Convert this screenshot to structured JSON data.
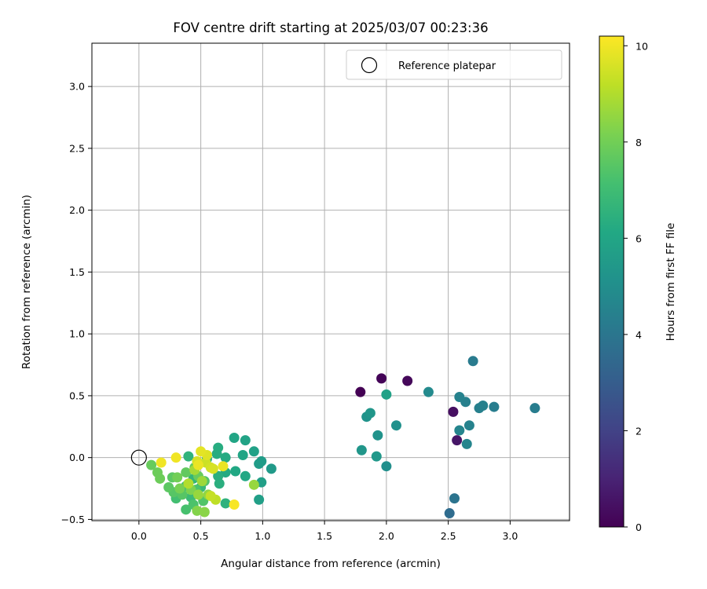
{
  "chart_data": {
    "type": "scatter",
    "title": "FOV centre drift starting at 2025/03/07 00:23:36",
    "xlabel": "Angular distance from reference (arcmin)",
    "ylabel": "Rotation from reference (arcmin)",
    "xlim": [
      -0.38,
      3.48
    ],
    "ylim": [
      -0.51,
      3.35
    ],
    "xticks": [
      0.0,
      0.5,
      1.0,
      1.5,
      2.0,
      2.5,
      3.0
    ],
    "xtick_labels": [
      "0.0",
      "0.5",
      "1.0",
      "1.5",
      "2.0",
      "2.5",
      "3.0"
    ],
    "yticks": [
      -0.5,
      0.0,
      0.5,
      1.0,
      1.5,
      2.0,
      2.5,
      3.0
    ],
    "ytick_labels": [
      "−0.5",
      "0.0",
      "0.5",
      "1.0",
      "1.5",
      "2.0",
      "2.5",
      "3.0"
    ],
    "grid": true,
    "legend": {
      "placement": "top-right",
      "entries": [
        {
          "label": "Reference platepar",
          "marker": "hollow-circle"
        }
      ]
    },
    "reference_point": {
      "x": 0.0,
      "y": 0.0
    },
    "colorbar": {
      "label": "Hours from first FF file",
      "colormap": "viridis",
      "range": [
        0,
        10.2
      ],
      "ticks": [
        0,
        2,
        4,
        6,
        8,
        10
      ],
      "tick_labels": [
        "0",
        "2",
        "4",
        "6",
        "8",
        "10"
      ]
    },
    "series": [
      {
        "points": [
          {
            "x": 1.79,
            "y": 0.53,
            "c": 0.0
          },
          {
            "x": 1.96,
            "y": 0.64,
            "c": 0.1
          },
          {
            "x": 2.17,
            "y": 0.62,
            "c": 0.2
          },
          {
            "x": 2.54,
            "y": 0.37,
            "c": 0.4
          },
          {
            "x": 2.57,
            "y": 0.14,
            "c": 0.6
          },
          {
            "x": 2.51,
            "y": -0.45,
            "c": 3.6
          },
          {
            "x": 2.55,
            "y": -0.33,
            "c": 3.9
          },
          {
            "x": 2.7,
            "y": 0.78,
            "c": 4.2
          },
          {
            "x": 3.2,
            "y": 0.4,
            "c": 4.3
          },
          {
            "x": 2.87,
            "y": 0.41,
            "c": 4.3
          },
          {
            "x": 2.78,
            "y": 0.42,
            "c": 4.4
          },
          {
            "x": 2.75,
            "y": 0.4,
            "c": 4.4
          },
          {
            "x": 2.64,
            "y": 0.45,
            "c": 4.4
          },
          {
            "x": 2.59,
            "y": 0.49,
            "c": 4.5
          },
          {
            "x": 2.67,
            "y": 0.26,
            "c": 4.5
          },
          {
            "x": 2.59,
            "y": 0.22,
            "c": 4.6
          },
          {
            "x": 2.65,
            "y": 0.11,
            "c": 4.6
          },
          {
            "x": 2.34,
            "y": 0.53,
            "c": 4.8
          },
          {
            "x": 2.0,
            "y": -0.07,
            "c": 5.0
          },
          {
            "x": 2.08,
            "y": 0.26,
            "c": 5.1
          },
          {
            "x": 1.93,
            "y": 0.18,
            "c": 5.2
          },
          {
            "x": 1.84,
            "y": 0.33,
            "c": 5.2
          },
          {
            "x": 1.87,
            "y": 0.36,
            "c": 5.3
          },
          {
            "x": 1.8,
            "y": 0.06,
            "c": 5.3
          },
          {
            "x": 1.92,
            "y": 0.01,
            "c": 5.4
          },
          {
            "x": 2.0,
            "y": 0.51,
            "c": 5.8
          },
          {
            "x": 1.07,
            "y": -0.09,
            "c": 5.5
          },
          {
            "x": 0.97,
            "y": -0.05,
            "c": 5.6
          },
          {
            "x": 0.99,
            "y": -0.03,
            "c": 5.6
          },
          {
            "x": 0.97,
            "y": -0.34,
            "c": 5.7
          },
          {
            "x": 0.99,
            "y": -0.2,
            "c": 5.7
          },
          {
            "x": 0.93,
            "y": 0.05,
            "c": 5.8
          },
          {
            "x": 0.86,
            "y": 0.14,
            "c": 5.9
          },
          {
            "x": 0.77,
            "y": 0.16,
            "c": 6.0
          },
          {
            "x": 0.84,
            "y": 0.02,
            "c": 6.0
          },
          {
            "x": 0.86,
            "y": -0.15,
            "c": 6.1
          },
          {
            "x": 0.78,
            "y": -0.11,
            "c": 6.1
          },
          {
            "x": 0.7,
            "y": 0.0,
            "c": 6.2
          },
          {
            "x": 0.7,
            "y": -0.12,
            "c": 6.2
          },
          {
            "x": 0.64,
            "y": 0.08,
            "c": 6.3
          },
          {
            "x": 0.63,
            "y": 0.03,
            "c": 6.3
          },
          {
            "x": 0.64,
            "y": -0.15,
            "c": 6.4
          },
          {
            "x": 0.65,
            "y": -0.21,
            "c": 6.4
          },
          {
            "x": 0.7,
            "y": -0.37,
            "c": 6.5
          },
          {
            "x": 0.55,
            "y": -0.01,
            "c": 6.5
          },
          {
            "x": 0.4,
            "y": 0.01,
            "c": 6.6
          },
          {
            "x": 0.44,
            "y": -0.17,
            "c": 6.7
          },
          {
            "x": 0.5,
            "y": -0.24,
            "c": 6.8
          },
          {
            "x": 0.42,
            "y": -0.32,
            "c": 6.9
          },
          {
            "x": 0.38,
            "y": -0.23,
            "c": 7.0
          },
          {
            "x": 0.3,
            "y": -0.33,
            "c": 7.1
          },
          {
            "x": 0.38,
            "y": -0.42,
            "c": 7.2
          },
          {
            "x": 0.44,
            "y": -0.38,
            "c": 7.3
          },
          {
            "x": 0.46,
            "y": -0.26,
            "c": 7.3
          },
          {
            "x": 0.52,
            "y": -0.35,
            "c": 7.4
          },
          {
            "x": 0.53,
            "y": -0.19,
            "c": 7.4
          },
          {
            "x": 0.35,
            "y": -0.3,
            "c": 7.5
          },
          {
            "x": 0.28,
            "y": -0.28,
            "c": 7.5
          },
          {
            "x": 0.24,
            "y": -0.24,
            "c": 7.6
          },
          {
            "x": 0.27,
            "y": -0.16,
            "c": 7.6
          },
          {
            "x": 0.38,
            "y": -0.12,
            "c": 7.7
          },
          {
            "x": 0.45,
            "y": -0.08,
            "c": 7.7
          },
          {
            "x": 0.48,
            "y": -0.15,
            "c": 7.8
          },
          {
            "x": 0.1,
            "y": -0.06,
            "c": 7.8
          },
          {
            "x": 0.15,
            "y": -0.12,
            "c": 7.9
          },
          {
            "x": 0.17,
            "y": -0.17,
            "c": 7.9
          },
          {
            "x": 0.31,
            "y": -0.16,
            "c": 8.0
          },
          {
            "x": 0.33,
            "y": -0.25,
            "c": 8.1
          },
          {
            "x": 0.42,
            "y": -0.26,
            "c": 8.2
          },
          {
            "x": 0.47,
            "y": -0.43,
            "c": 8.3
          },
          {
            "x": 0.53,
            "y": -0.44,
            "c": 8.4
          },
          {
            "x": 0.56,
            "y": -0.3,
            "c": 8.5
          },
          {
            "x": 0.48,
            "y": -0.3,
            "c": 8.6
          },
          {
            "x": 0.93,
            "y": -0.22,
            "c": 8.6
          },
          {
            "x": 0.51,
            "y": -0.19,
            "c": 8.7
          },
          {
            "x": 0.45,
            "y": -0.1,
            "c": 8.8
          },
          {
            "x": 0.4,
            "y": -0.21,
            "c": 9.0
          },
          {
            "x": 0.62,
            "y": -0.34,
            "c": 9.2
          },
          {
            "x": 0.58,
            "y": -0.31,
            "c": 9.3
          },
          {
            "x": 0.54,
            "y": -0.04,
            "c": 9.4
          },
          {
            "x": 0.58,
            "y": -0.08,
            "c": 9.5
          },
          {
            "x": 0.6,
            "y": -0.09,
            "c": 9.6
          },
          {
            "x": 0.47,
            "y": -0.03,
            "c": 9.6
          },
          {
            "x": 0.55,
            "y": 0.02,
            "c": 9.7
          },
          {
            "x": 0.5,
            "y": 0.05,
            "c": 9.8
          },
          {
            "x": 0.68,
            "y": -0.07,
            "c": 9.9
          },
          {
            "x": 0.48,
            "y": -0.06,
            "c": 9.9
          },
          {
            "x": 0.3,
            "y": 0.0,
            "c": 10.0
          },
          {
            "x": 0.18,
            "y": -0.04,
            "c": 10.0
          },
          {
            "x": 0.77,
            "y": -0.38,
            "c": 10.1
          }
        ]
      }
    ]
  }
}
